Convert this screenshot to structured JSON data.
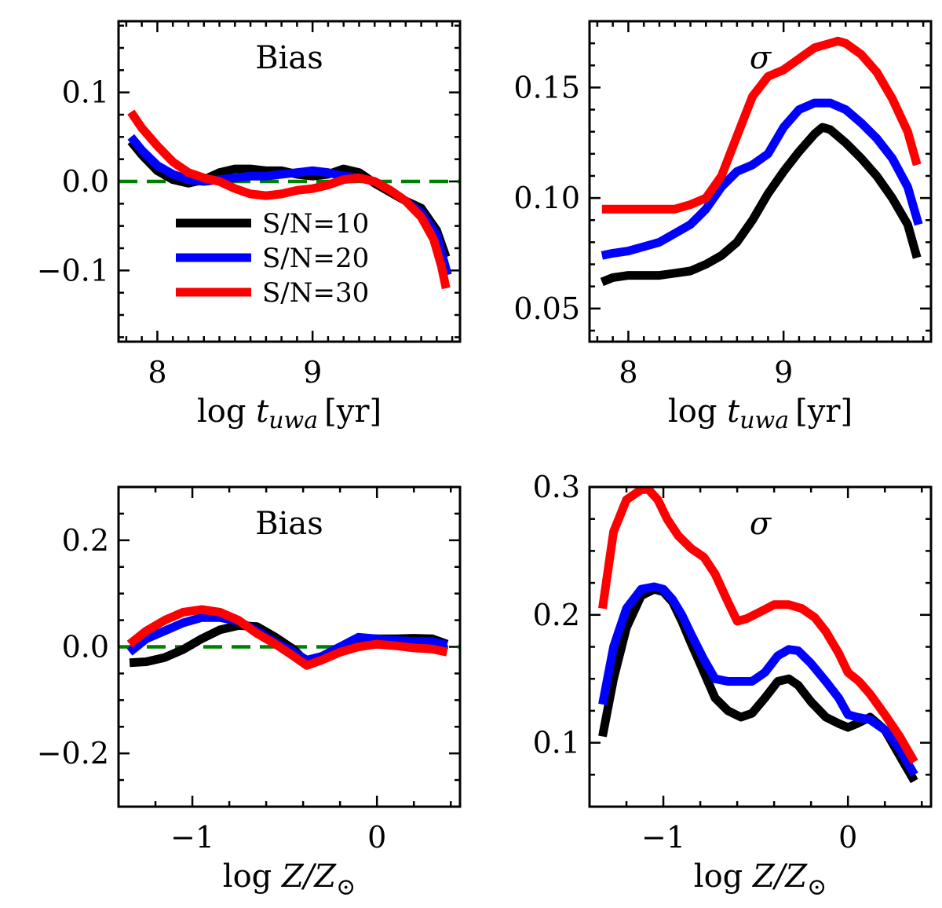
{
  "chart_data": [
    {
      "id": "p1",
      "type": "line",
      "title": "Bias",
      "italic_title": false,
      "xlabel_parts": [
        "log ",
        "t",
        "uwa",
        " [yr]"
      ],
      "xlim": [
        7.75,
        9.95
      ],
      "ylim": [
        -0.18,
        0.18
      ],
      "xticks": [
        {
          "v": 8,
          "label": "8"
        },
        {
          "v": 9,
          "label": "9"
        }
      ],
      "xminor": [
        7.8,
        7.9,
        8.1,
        8.2,
        8.3,
        8.4,
        8.5,
        8.6,
        8.7,
        8.8,
        8.9,
        9.1,
        9.2,
        9.3,
        9.4,
        9.5,
        9.6,
        9.7,
        9.8,
        9.9
      ],
      "yticks": [
        {
          "v": 0.1,
          "label": "0.1"
        },
        {
          "v": 0.0,
          "label": "0.0"
        },
        {
          "v": -0.1,
          "label": "−0.1"
        }
      ],
      "yminor": [
        -0.175,
        -0.15,
        -0.125,
        -0.075,
        -0.05,
        -0.025,
        0.025,
        0.05,
        0.075,
        0.125,
        0.15,
        0.175
      ],
      "zero_line": true,
      "legend": {
        "position": "lower-left",
        "entries": [
          "S/N=10",
          "S/N=20",
          "S/N=30"
        ]
      },
      "series": [
        {
          "name": "S/N=10",
          "color": "#000000",
          "x": [
            7.83,
            7.9,
            8.0,
            8.1,
            8.2,
            8.3,
            8.4,
            8.5,
            8.6,
            8.7,
            8.8,
            8.9,
            9.0,
            9.1,
            9.2,
            9.3,
            9.4,
            9.5,
            9.6,
            9.7,
            9.8,
            9.86
          ],
          "y": [
            0.045,
            0.03,
            0.012,
            0.002,
            -0.002,
            0.002,
            0.01,
            0.014,
            0.014,
            0.012,
            0.012,
            0.008,
            0.006,
            0.008,
            0.014,
            0.01,
            -0.002,
            -0.012,
            -0.022,
            -0.03,
            -0.055,
            -0.085
          ]
        },
        {
          "name": "S/N=20",
          "color": "#0000ff",
          "x": [
            7.83,
            7.9,
            8.0,
            8.1,
            8.2,
            8.3,
            8.4,
            8.5,
            8.6,
            8.7,
            8.8,
            8.9,
            9.0,
            9.1,
            9.2,
            9.3,
            9.4,
            9.5,
            9.6,
            9.7,
            9.8,
            9.87
          ],
          "y": [
            0.05,
            0.035,
            0.018,
            0.008,
            0.002,
            0.0,
            0.002,
            0.004,
            0.006,
            0.006,
            0.008,
            0.01,
            0.012,
            0.01,
            0.006,
            0.004,
            0.0,
            -0.01,
            -0.022,
            -0.035,
            -0.06,
            -0.105
          ]
        },
        {
          "name": "S/N=30",
          "color": "#ff0000",
          "x": [
            7.83,
            7.9,
            8.0,
            8.1,
            8.2,
            8.3,
            8.4,
            8.5,
            8.6,
            8.7,
            8.8,
            8.9,
            9.0,
            9.1,
            9.2,
            9.3,
            9.4,
            9.5,
            9.6,
            9.7,
            9.78,
            9.83,
            9.86
          ],
          "y": [
            0.078,
            0.06,
            0.04,
            0.022,
            0.01,
            0.004,
            0.0,
            -0.008,
            -0.014,
            -0.016,
            -0.014,
            -0.01,
            -0.008,
            -0.004,
            0.002,
            0.004,
            0.0,
            -0.01,
            -0.022,
            -0.04,
            -0.065,
            -0.095,
            -0.12
          ]
        }
      ]
    },
    {
      "id": "p2",
      "type": "line",
      "title": "σ",
      "italic_title": true,
      "xlabel_parts": [
        "log ",
        "t",
        "uwa",
        " [yr]"
      ],
      "xlim": [
        7.75,
        9.95
      ],
      "ylim": [
        0.035,
        0.18
      ],
      "xticks": [
        {
          "v": 8,
          "label": "8"
        },
        {
          "v": 9,
          "label": "9"
        }
      ],
      "xminor": [
        7.8,
        7.9,
        8.1,
        8.2,
        8.3,
        8.4,
        8.5,
        8.6,
        8.7,
        8.8,
        8.9,
        9.1,
        9.2,
        9.3,
        9.4,
        9.5,
        9.6,
        9.7,
        9.8,
        9.9
      ],
      "yticks": [
        {
          "v": 0.05,
          "label": "0.05"
        },
        {
          "v": 0.1,
          "label": "0.10"
        },
        {
          "v": 0.15,
          "label": "0.15"
        }
      ],
      "yminor": [
        0.04,
        0.06,
        0.07,
        0.08,
        0.09,
        0.11,
        0.12,
        0.13,
        0.14,
        0.16,
        0.17
      ],
      "zero_line": false,
      "series": [
        {
          "name": "S/N=10",
          "color": "#000000",
          "x": [
            7.83,
            7.9,
            8.0,
            8.1,
            8.2,
            8.3,
            8.4,
            8.5,
            8.6,
            8.7,
            8.8,
            8.9,
            9.0,
            9.1,
            9.2,
            9.25,
            9.3,
            9.4,
            9.5,
            9.6,
            9.7,
            9.8,
            9.86
          ],
          "y": [
            0.062,
            0.064,
            0.065,
            0.065,
            0.065,
            0.066,
            0.067,
            0.07,
            0.074,
            0.08,
            0.09,
            0.102,
            0.112,
            0.121,
            0.129,
            0.132,
            0.131,
            0.125,
            0.118,
            0.11,
            0.1,
            0.088,
            0.073
          ]
        },
        {
          "name": "S/N=20",
          "color": "#0000ff",
          "x": [
            7.83,
            7.9,
            8.0,
            8.1,
            8.2,
            8.3,
            8.4,
            8.5,
            8.6,
            8.7,
            8.8,
            8.9,
            9.0,
            9.1,
            9.2,
            9.3,
            9.4,
            9.5,
            9.6,
            9.7,
            9.8,
            9.87
          ],
          "y": [
            0.074,
            0.075,
            0.076,
            0.078,
            0.08,
            0.084,
            0.088,
            0.095,
            0.105,
            0.112,
            0.115,
            0.12,
            0.132,
            0.14,
            0.143,
            0.143,
            0.14,
            0.134,
            0.127,
            0.118,
            0.105,
            0.088
          ]
        },
        {
          "name": "S/N=30",
          "color": "#ff0000",
          "x": [
            7.83,
            7.9,
            8.0,
            8.1,
            8.2,
            8.3,
            8.4,
            8.5,
            8.6,
            8.7,
            8.8,
            8.9,
            9.0,
            9.1,
            9.2,
            9.3,
            9.35,
            9.4,
            9.5,
            9.6,
            9.7,
            9.8,
            9.86
          ],
          "y": [
            0.095,
            0.095,
            0.095,
            0.095,
            0.095,
            0.095,
            0.097,
            0.1,
            0.11,
            0.128,
            0.146,
            0.155,
            0.158,
            0.163,
            0.168,
            0.17,
            0.171,
            0.17,
            0.165,
            0.157,
            0.145,
            0.13,
            0.115
          ]
        }
      ]
    },
    {
      "id": "p3",
      "type": "line",
      "title": "Bias",
      "italic_title": false,
      "xlabel_parts": [
        "log ",
        "Z/Z",
        "⊙",
        ""
      ],
      "xlim": [
        -1.4,
        0.45
      ],
      "ylim": [
        -0.3,
        0.3
      ],
      "xticks": [
        {
          "v": -1,
          "label": "−1"
        },
        {
          "v": 0,
          "label": "0"
        }
      ],
      "xminor": [
        -1.2,
        -0.8,
        -0.6,
        -0.4,
        -0.2,
        0.2,
        0.4
      ],
      "yticks": [
        {
          "v": 0.2,
          "label": "0.2"
        },
        {
          "v": 0.0,
          "label": "0.0"
        },
        {
          "v": -0.2,
          "label": "−0.2"
        }
      ],
      "yminor": [
        -0.25,
        -0.15,
        -0.1,
        -0.05,
        0.05,
        0.1,
        0.15,
        0.25
      ],
      "zero_line": true,
      "series": [
        {
          "name": "S/N=10",
          "color": "#000000",
          "x": [
            -1.34,
            -1.25,
            -1.15,
            -1.05,
            -0.95,
            -0.85,
            -0.75,
            -0.65,
            -0.55,
            -0.45,
            -0.38,
            -0.3,
            -0.2,
            -0.1,
            0.0,
            0.1,
            0.2,
            0.3,
            0.38
          ],
          "y": [
            -0.03,
            -0.028,
            -0.02,
            -0.005,
            0.015,
            0.032,
            0.04,
            0.038,
            0.018,
            -0.005,
            -0.03,
            -0.02,
            0.0,
            0.015,
            0.015,
            0.015,
            0.016,
            0.015,
            0.005
          ]
        },
        {
          "name": "S/N=20",
          "color": "#0000ff",
          "x": [
            -1.34,
            -1.25,
            -1.15,
            -1.05,
            -0.95,
            -0.85,
            -0.75,
            -0.65,
            -0.55,
            -0.45,
            -0.38,
            -0.3,
            -0.2,
            -0.1,
            0.0,
            0.1,
            0.2,
            0.3,
            0.38
          ],
          "y": [
            -0.01,
            0.015,
            0.03,
            0.045,
            0.055,
            0.055,
            0.048,
            0.03,
            0.008,
            -0.01,
            -0.025,
            -0.018,
            0.0,
            0.018,
            0.015,
            0.012,
            0.01,
            0.01,
            0.003
          ]
        },
        {
          "name": "S/N=30",
          "color": "#ff0000",
          "x": [
            -1.34,
            -1.25,
            -1.15,
            -1.05,
            -0.95,
            -0.85,
            -0.75,
            -0.65,
            -0.55,
            -0.45,
            -0.38,
            -0.3,
            -0.2,
            -0.1,
            0.0,
            0.1,
            0.2,
            0.3,
            0.38
          ],
          "y": [
            0.005,
            0.03,
            0.05,
            0.065,
            0.07,
            0.065,
            0.05,
            0.025,
            0.005,
            -0.018,
            -0.035,
            -0.025,
            -0.01,
            0.0,
            0.005,
            0.002,
            -0.002,
            -0.004,
            -0.01
          ]
        }
      ]
    },
    {
      "id": "p4",
      "type": "line",
      "title": "σ",
      "italic_title": true,
      "xlabel_parts": [
        "log ",
        "Z/Z",
        "⊙",
        ""
      ],
      "xlim": [
        -1.4,
        0.45
      ],
      "ylim": [
        0.05,
        0.3
      ],
      "xticks": [
        {
          "v": -1,
          "label": "−1"
        },
        {
          "v": 0,
          "label": "0"
        }
      ],
      "xminor": [
        -1.2,
        -0.8,
        -0.6,
        -0.4,
        -0.2,
        0.2,
        0.4
      ],
      "yticks": [
        {
          "v": 0.1,
          "label": "0.1"
        },
        {
          "v": 0.2,
          "label": "0.2"
        },
        {
          "v": 0.3,
          "label": "0.3"
        }
      ],
      "yminor": [
        0.075,
        0.125,
        0.15,
        0.175,
        0.225,
        0.25,
        0.275
      ],
      "zero_line": false,
      "series": [
        {
          "name": "S/N=10",
          "color": "#000000",
          "x": [
            -1.33,
            -1.27,
            -1.2,
            -1.12,
            -1.05,
            -1.0,
            -0.95,
            -0.9,
            -0.85,
            -0.78,
            -0.72,
            -0.65,
            -0.58,
            -0.52,
            -0.45,
            -0.38,
            -0.32,
            -0.27,
            -0.2,
            -0.12,
            -0.05,
            0.0,
            0.05,
            0.12,
            0.2,
            0.28,
            0.36
          ],
          "y": [
            0.105,
            0.15,
            0.19,
            0.215,
            0.22,
            0.218,
            0.21,
            0.195,
            0.178,
            0.155,
            0.135,
            0.125,
            0.12,
            0.123,
            0.135,
            0.148,
            0.15,
            0.145,
            0.132,
            0.12,
            0.115,
            0.112,
            0.115,
            0.12,
            0.11,
            0.09,
            0.07
          ]
        },
        {
          "name": "S/N=20",
          "color": "#0000ff",
          "x": [
            -1.33,
            -1.27,
            -1.2,
            -1.12,
            -1.05,
            -1.0,
            -0.95,
            -0.9,
            -0.85,
            -0.78,
            -0.72,
            -0.65,
            -0.58,
            -0.52,
            -0.45,
            -0.38,
            -0.32,
            -0.27,
            -0.2,
            -0.12,
            -0.05,
            0.0,
            0.05,
            0.12,
            0.2,
            0.28,
            0.36
          ],
          "y": [
            0.13,
            0.175,
            0.205,
            0.22,
            0.222,
            0.22,
            0.212,
            0.2,
            0.185,
            0.165,
            0.15,
            0.148,
            0.148,
            0.148,
            0.155,
            0.168,
            0.173,
            0.172,
            0.162,
            0.148,
            0.135,
            0.122,
            0.12,
            0.118,
            0.11,
            0.095,
            0.075
          ]
        },
        {
          "name": "S/N=30",
          "color": "#ff0000",
          "x": [
            -1.33,
            -1.27,
            -1.2,
            -1.12,
            -1.08,
            -1.03,
            -0.98,
            -0.92,
            -0.85,
            -0.78,
            -0.72,
            -0.65,
            -0.6,
            -0.55,
            -0.48,
            -0.4,
            -0.32,
            -0.25,
            -0.18,
            -0.12,
            -0.05,
            0.0,
            0.06,
            0.12,
            0.2,
            0.28,
            0.36
          ],
          "y": [
            0.205,
            0.265,
            0.29,
            0.298,
            0.298,
            0.29,
            0.275,
            0.262,
            0.252,
            0.245,
            0.232,
            0.21,
            0.195,
            0.197,
            0.202,
            0.208,
            0.208,
            0.205,
            0.198,
            0.187,
            0.17,
            0.155,
            0.148,
            0.138,
            0.122,
            0.105,
            0.085
          ]
        }
      ]
    }
  ]
}
